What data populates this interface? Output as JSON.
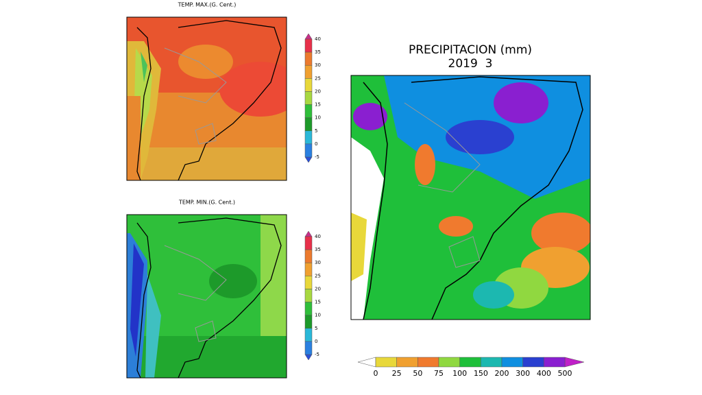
{
  "panels": [
    {
      "title": "TEMP. MAX.(G. Cent.)",
      "colorbar_labels": [
        40,
        35,
        30,
        25,
        20,
        15,
        10,
        5,
        0,
        -5
      ]
    },
    {
      "title": "TEMP. MIN.(G. Cent.)",
      "colorbar_labels": [
        40,
        35,
        30,
        25,
        20,
        15,
        10,
        5,
        0,
        -5
      ]
    },
    {
      "title": "PRECIPITACION (mm)",
      "subtitle": "2019  3",
      "colorbar_labels": [
        0,
        25,
        50,
        75,
        100,
        150,
        200,
        300,
        400,
        500
      ]
    }
  ]
}
